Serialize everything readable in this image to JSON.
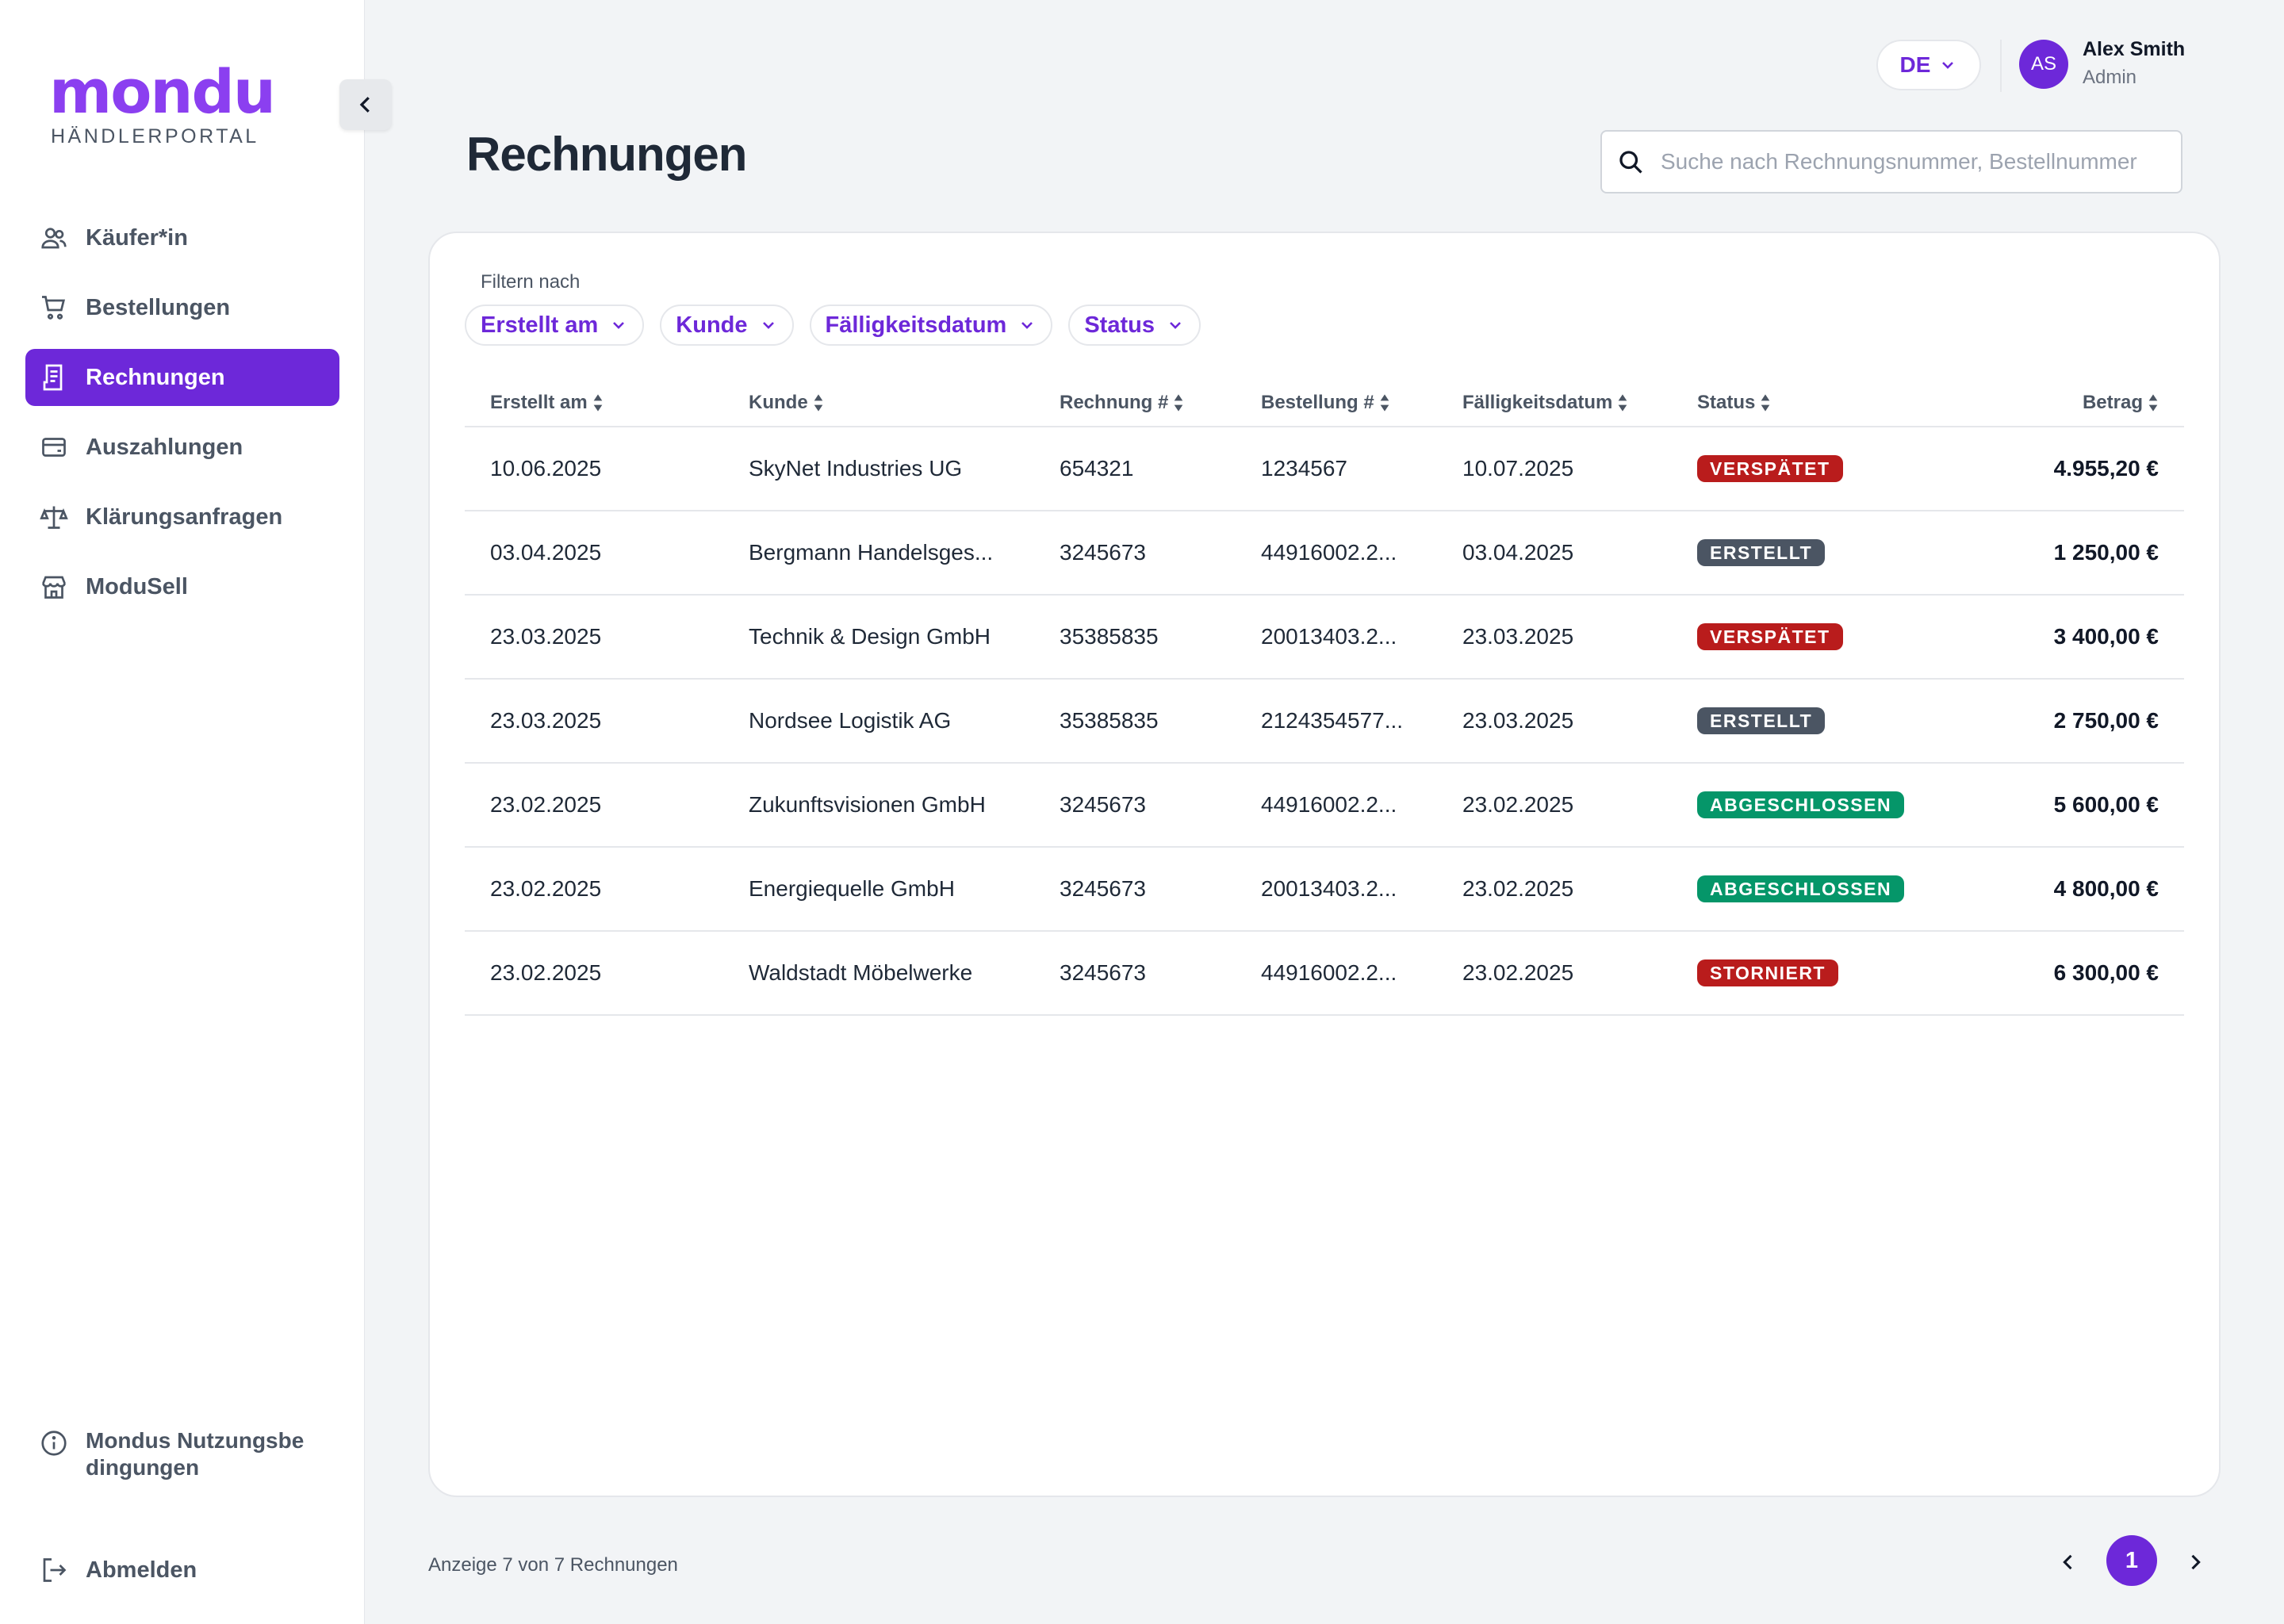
{
  "app": {
    "logo_text": "mondu",
    "logo_subtitle": "HÄNDLERPORTAL",
    "brand_color": "#8b3ff0",
    "accent_color": "#6d28d9"
  },
  "sidebar": {
    "items": [
      {
        "label": "Käufer*in",
        "icon": "users-icon",
        "active": false
      },
      {
        "label": "Bestellungen",
        "icon": "cart-icon",
        "active": false
      },
      {
        "label": "Rechnungen",
        "icon": "invoice-icon",
        "active": true
      },
      {
        "label": "Auszahlungen",
        "icon": "wallet-icon",
        "active": false
      },
      {
        "label": "Klärungsanfragen",
        "icon": "scale-icon",
        "active": false
      },
      {
        "label": "ModuSell",
        "icon": "store-icon",
        "active": false
      }
    ],
    "terms_label": "Mondus Nutzungsbedingungen",
    "logout_label": "Abmelden"
  },
  "header": {
    "language": "DE",
    "user_initials": "AS",
    "user_name": "Alex Smith",
    "user_role": "Admin"
  },
  "page": {
    "title": "Rechnungen",
    "search_placeholder": "Suche nach Rechnungsnummer, Bestellnummer"
  },
  "filters": {
    "label": "Filtern nach",
    "chips": [
      "Erstellt am",
      "Kunde",
      "Fälligkeitsdatum",
      "Status"
    ]
  },
  "table": {
    "columns": [
      "Erstellt am",
      "Kunde",
      "Rechnung #",
      "Bestellung #",
      "Fälligkeitsdatum",
      "Status",
      "Betrag"
    ],
    "rows": [
      {
        "created": "10.06.2025",
        "customer": "SkyNet Industries UG",
        "invoice": "654321",
        "order": "1234567",
        "due": "10.07.2025",
        "status": "VERSPÄTET",
        "status_color": "#b91c1c",
        "amount": "4.955,20 €"
      },
      {
        "created": "03.04.2025",
        "customer": "Bergmann Handelsges...",
        "invoice": "3245673",
        "order": "44916002.2...",
        "due": "03.04.2025",
        "status": "ERSTELLT",
        "status_color": "#4b5563",
        "amount": "1 250,00 €"
      },
      {
        "created": "23.03.2025",
        "customer": "Technik & Design GmbH",
        "invoice": "35385835",
        "order": "20013403.2...",
        "due": "23.03.2025",
        "status": "VERSPÄTET",
        "status_color": "#b91c1c",
        "amount": "3 400,00 €"
      },
      {
        "created": "23.03.2025",
        "customer": "Nordsee Logistik AG",
        "invoice": "35385835",
        "order": "2124354577...",
        "due": "23.03.2025",
        "status": "ERSTELLT",
        "status_color": "#4b5563",
        "amount": "2 750,00 €"
      },
      {
        "created": "23.02.2025",
        "customer": "Zukunftsvisionen GmbH",
        "invoice": "3245673",
        "order": "44916002.2...",
        "due": "23.02.2025",
        "status": "ABGESCHLOSSEN",
        "status_color": "#059669",
        "amount": "5 600,00 €"
      },
      {
        "created": "23.02.2025",
        "customer": "Energiequelle GmbH",
        "invoice": "3245673",
        "order": "20013403.2...",
        "due": "23.02.2025",
        "status": "ABGESCHLOSSEN",
        "status_color": "#059669",
        "amount": "4 800,00 €"
      },
      {
        "created": "23.02.2025",
        "customer": "Waldstadt Möbelwerke",
        "invoice": "3245673",
        "order": "44916002.2...",
        "due": "23.02.2025",
        "status": "STORNIERT",
        "status_color": "#b91c1c",
        "amount": "6 300,00 €"
      }
    ]
  },
  "footer": {
    "summary": "Anzeige 7 von 7 Rechnungen",
    "current_page": "1"
  }
}
